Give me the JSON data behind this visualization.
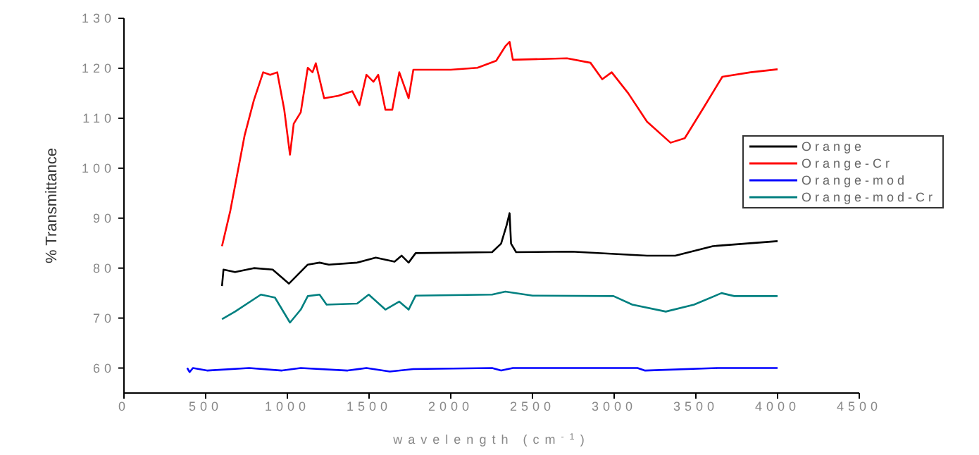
{
  "chart_data": {
    "type": "line",
    "xlabel": "wavelength (cm$^{-1}$)",
    "ylabel": "% Transmittance",
    "xlim": [
      0,
      4500
    ],
    "xticks": [
      0,
      500,
      1000,
      1500,
      2000,
      2500,
      3000,
      3500,
      4000,
      4500
    ],
    "ylim": [
      55,
      130
    ],
    "yticks": [
      60,
      70,
      80,
      90,
      100,
      110,
      120,
      130
    ],
    "grid": false,
    "legend": "right",
    "marker": "none",
    "line_style": "solid",
    "series": [
      {
        "name": "Orange",
        "color": "#000000",
        "x": [
          600,
          609,
          680,
          795,
          910,
          1010,
          1125,
          1197,
          1254,
          1427,
          1541,
          1656,
          1699,
          1742,
          1785,
          2253,
          2308,
          2342,
          2360,
          2369,
          2400,
          2739,
          3201,
          3374,
          3604,
          4000
        ],
        "values": [
          76.4,
          79.7,
          79.2,
          80,
          79.7,
          76.9,
          80.7,
          81.1,
          80.7,
          81.1,
          82.1,
          81.3,
          82.5,
          81.1,
          83,
          83.2,
          84.9,
          88.6,
          91,
          84.9,
          83.2,
          83.3,
          82.5,
          82.5,
          84.4,
          85.4
        ]
      },
      {
        "name": "Orange-Cr",
        "color": "#ff0000",
        "x": [
          600,
          651,
          738,
          795,
          852,
          895,
          938,
          981,
          1016,
          1039,
          1082,
          1125,
          1154,
          1174,
          1225,
          1312,
          1398,
          1441,
          1484,
          1527,
          1556,
          1600,
          1642,
          1685,
          1742,
          1771,
          2000,
          2163,
          2278,
          2334,
          2360,
          2380,
          2711,
          2855,
          2927,
          2985,
          3086,
          3201,
          3345,
          3432,
          3547,
          3662,
          3835,
          4000
        ],
        "values": [
          84.4,
          91.5,
          106.5,
          113.6,
          119.2,
          118.7,
          119.2,
          111.7,
          102.7,
          108.9,
          111.2,
          120.1,
          119.2,
          121,
          114,
          114.5,
          115.4,
          112.6,
          118.7,
          117.3,
          118.7,
          111.7,
          111.7,
          119.2,
          114,
          119.7,
          119.7,
          120.1,
          121.5,
          124.4,
          125.3,
          121.7,
          122,
          121.1,
          117.8,
          119.2,
          115,
          109.3,
          105.1,
          106,
          112.1,
          118.3,
          119.2,
          119.8
        ]
      },
      {
        "name": "Orange-mod",
        "color": "#0000ff",
        "x": [
          387,
          402,
          422,
          508,
          766,
          967,
          1082,
          1369,
          1484,
          1627,
          1771,
          2253,
          2308,
          2380,
          3143,
          3187,
          3633,
          4000
        ],
        "values": [
          60,
          59.2,
          60,
          59.5,
          60,
          59.5,
          60,
          59.5,
          60,
          59.3,
          59.8,
          60,
          59.5,
          60,
          60,
          59.5,
          60,
          60
        ]
      },
      {
        "name": "Orange-mod-Cr",
        "color": "#008080",
        "x": [
          600,
          680,
          838,
          924,
          1016,
          1082,
          1125,
          1197,
          1240,
          1427,
          1498,
          1600,
          1685,
          1742,
          1785,
          2253,
          2334,
          2501,
          2996,
          3111,
          3316,
          3489,
          3657,
          3735,
          4000
        ],
        "values": [
          69.8,
          71.3,
          74.7,
          74.1,
          69.1,
          71.7,
          74.4,
          74.7,
          72.7,
          72.9,
          74.7,
          71.7,
          73.3,
          71.7,
          74.5,
          74.7,
          75.3,
          74.5,
          74.4,
          72.7,
          71.3,
          72.7,
          75,
          74.4,
          74.4
        ]
      }
    ]
  }
}
